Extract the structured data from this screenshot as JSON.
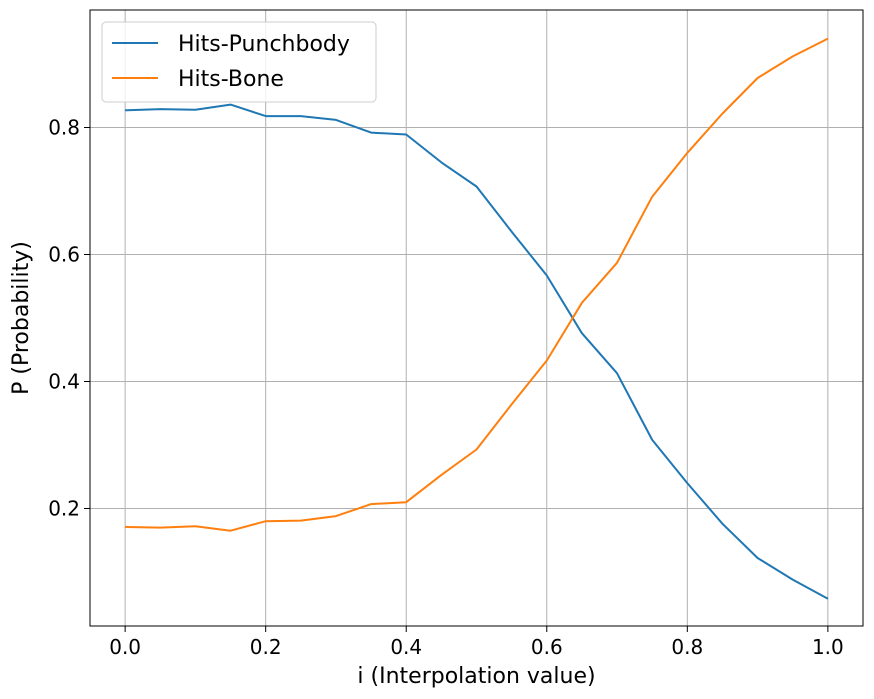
{
  "chart_data": {
    "type": "line",
    "title": "",
    "xlabel": "i (Interpolation value)",
    "ylabel": "P (Probability)",
    "xlim": [
      -0.05,
      1.05
    ],
    "ylim": [
      0.015,
      0.985
    ],
    "xticks": [
      0.0,
      0.2,
      0.4,
      0.6,
      0.8,
      1.0
    ],
    "xtick_labels": [
      "0.0",
      "0.2",
      "0.4",
      "0.6",
      "0.8",
      "1.0"
    ],
    "yticks": [
      0.2,
      0.4,
      0.6,
      0.8
    ],
    "ytick_labels": [
      "0.2",
      "0.4",
      "0.6",
      "0.8"
    ],
    "grid": true,
    "legend_position": "top-left",
    "x": [
      0.0,
      0.05,
      0.1,
      0.15,
      0.2,
      0.25,
      0.3,
      0.35,
      0.4,
      0.45,
      0.5,
      0.55,
      0.6,
      0.65,
      0.7,
      0.75,
      0.8,
      0.85,
      0.9,
      0.95,
      1.0
    ],
    "series": [
      {
        "name": "Hits-Punchbody",
        "color": "#1f77b4",
        "values": [
          0.827,
          0.829,
          0.828,
          0.836,
          0.818,
          0.818,
          0.812,
          0.792,
          0.789,
          0.745,
          0.707,
          0.636,
          0.567,
          0.476,
          0.413,
          0.308,
          0.24,
          0.176,
          0.122,
          0.088,
          0.058
        ]
      },
      {
        "name": "Hits-Bone",
        "color": "#ff7f0e",
        "values": [
          0.171,
          0.17,
          0.172,
          0.165,
          0.18,
          0.181,
          0.188,
          0.207,
          0.21,
          0.253,
          0.293,
          0.364,
          0.433,
          0.524,
          0.587,
          0.691,
          0.76,
          0.822,
          0.878,
          0.912,
          0.94
        ]
      }
    ]
  }
}
